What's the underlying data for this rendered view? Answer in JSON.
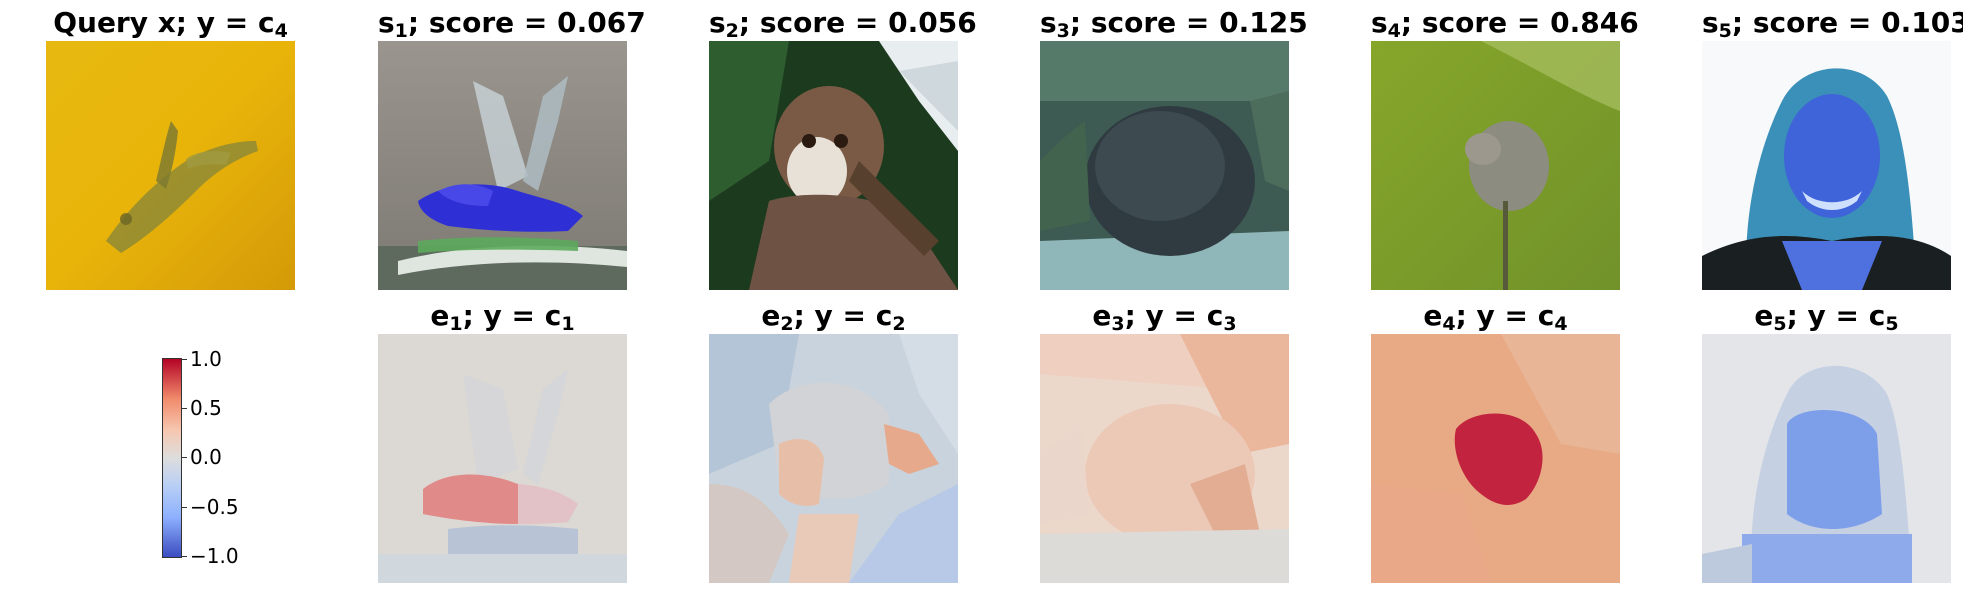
{
  "query": {
    "title_main": "Query x; y = c",
    "title_sub": "4",
    "icon": "bird-on-yellow-image"
  },
  "top_row": [
    {
      "sym": "s",
      "sub": "1",
      "rest": "; score = 0.067",
      "icon": "butterfly-image",
      "score": 0.067
    },
    {
      "sym": "s",
      "sub": "2",
      "rest": "; score = 0.056",
      "icon": "monkey-image",
      "score": 0.056
    },
    {
      "sym": "s",
      "sub": "3",
      "rest": "; score = 0.125",
      "icon": "hedgehog-image",
      "score": 0.125
    },
    {
      "sym": "s",
      "sub": "4",
      "rest": "; score = 0.846",
      "icon": "bird-on-grass-image",
      "score": 0.846
    },
    {
      "sym": "s",
      "sub": "5",
      "rest": "; score = 0.103",
      "icon": "woman-portrait-image",
      "score": 0.103
    }
  ],
  "bottom_row": [
    {
      "sym": "e",
      "sub": "1",
      "mid": "; y = c",
      "sub2": "1",
      "icon": "explanation-heatmap-1"
    },
    {
      "sym": "e",
      "sub": "2",
      "mid": "; y = c",
      "sub2": "2",
      "icon": "explanation-heatmap-2"
    },
    {
      "sym": "e",
      "sub": "3",
      "mid": "; y = c",
      "sub2": "3",
      "icon": "explanation-heatmap-3"
    },
    {
      "sym": "e",
      "sub": "4",
      "mid": "; y = c",
      "sub2": "4",
      "icon": "explanation-heatmap-4"
    },
    {
      "sym": "e",
      "sub": "5",
      "mid": "; y = c",
      "sub2": "5",
      "icon": "explanation-heatmap-5"
    }
  ],
  "colorbar": {
    "ticks": [
      "1.0",
      "0.5",
      "0.0",
      "−0.5",
      "−1.0"
    ],
    "range": [
      -1.0,
      1.0
    ],
    "colormap": "coolwarm"
  }
}
